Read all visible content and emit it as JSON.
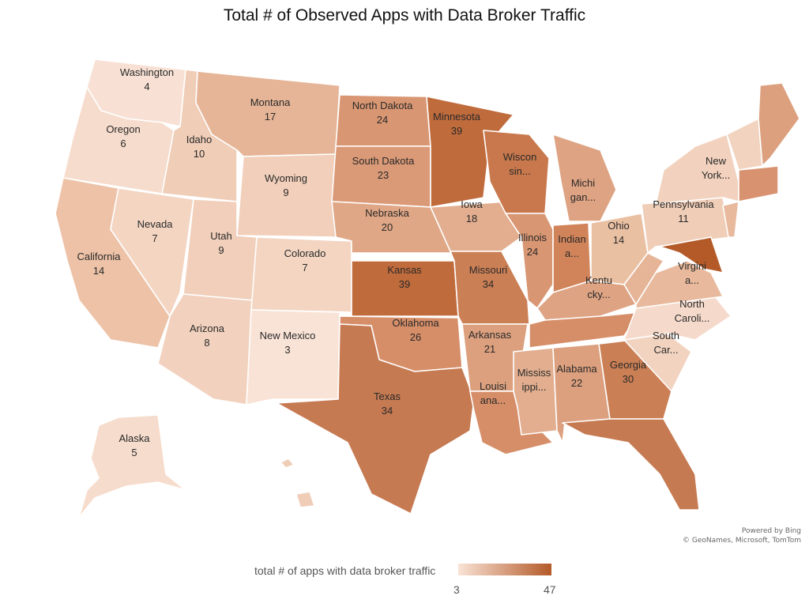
{
  "title": "Total # of Observed Apps with Data Broker Traffic",
  "credits": {
    "line1": "Powered by Bing",
    "line2": "© GeoNames, Microsoft, TomTom"
  },
  "legend": {
    "title": "total # of apps with data broker traffic",
    "min": "3",
    "max": "47",
    "min_color": "#f9e3d6",
    "max_color": "#b45a28"
  },
  "states": [
    {
      "id": "WA",
      "name": "Washington",
      "value": 4
    },
    {
      "id": "OR",
      "name": "Oregon",
      "value": 6
    },
    {
      "id": "CA",
      "name": "California",
      "value": 14
    },
    {
      "id": "ID",
      "name": "Idaho",
      "value": 10
    },
    {
      "id": "NV",
      "name": "Nevada",
      "value": 7
    },
    {
      "id": "MT",
      "name": "Montana",
      "value": 17
    },
    {
      "id": "WY",
      "name": "Wyoming",
      "value": 9
    },
    {
      "id": "UT",
      "name": "Utah",
      "value": 9
    },
    {
      "id": "AZ",
      "name": "Arizona",
      "value": 8
    },
    {
      "id": "CO",
      "name": "Colorado",
      "value": 7
    },
    {
      "id": "NM",
      "name": "New Mexico",
      "value": 3
    },
    {
      "id": "ND",
      "name": "North Dakota",
      "value": 24
    },
    {
      "id": "SD",
      "name": "South Dakota",
      "value": 23
    },
    {
      "id": "NE",
      "name": "Nebraska",
      "value": 20
    },
    {
      "id": "KS",
      "name": "Kansas",
      "value": 39
    },
    {
      "id": "OK",
      "name": "Oklahoma",
      "value": 26
    },
    {
      "id": "TX",
      "name": "Texas",
      "value": 34
    },
    {
      "id": "MN",
      "name": "Minnesota",
      "value": 39
    },
    {
      "id": "IA",
      "name": "Iowa",
      "value": 18
    },
    {
      "id": "MO",
      "name": "Missouri",
      "value": 34
    },
    {
      "id": "AR",
      "name": "Arkansas",
      "value": 21
    },
    {
      "id": "LA",
      "name": "Louisi ana...",
      "value": null
    },
    {
      "id": "WI",
      "name": "Wiscon sin...",
      "value": null
    },
    {
      "id": "IL",
      "name": "Illinois",
      "value": 24
    },
    {
      "id": "MI",
      "name": "Michi gan...",
      "value": null
    },
    {
      "id": "IN",
      "name": "Indian a...",
      "value": null
    },
    {
      "id": "OH",
      "name": "Ohio",
      "value": 14
    },
    {
      "id": "KY",
      "name": "Kentu cky...",
      "value": null
    },
    {
      "id": "TN",
      "name": "",
      "value": null
    },
    {
      "id": "MS",
      "name": "Mississ ippi...",
      "value": null
    },
    {
      "id": "AL",
      "name": "Alabama",
      "value": 22
    },
    {
      "id": "GA",
      "name": "Georgia",
      "value": 30
    },
    {
      "id": "FL",
      "name": "",
      "value": null
    },
    {
      "id": "SC",
      "name": "South Car...",
      "value": null
    },
    {
      "id": "NC",
      "name": "North Caroli...",
      "value": null
    },
    {
      "id": "VA",
      "name": "Virgini a...",
      "value": null
    },
    {
      "id": "WV",
      "name": "",
      "value": null
    },
    {
      "id": "PA",
      "name": "Pennsylvania",
      "value": 11
    },
    {
      "id": "NY",
      "name": "New York...",
      "value": null
    },
    {
      "id": "MD",
      "name": "",
      "value": null
    },
    {
      "id": "NE_SMALL",
      "name": "",
      "value": null
    },
    {
      "id": "ME",
      "name": "",
      "value": null
    },
    {
      "id": "AK",
      "name": "Alaska",
      "value": 5
    },
    {
      "id": "HI",
      "name": "",
      "value": null
    }
  ]
}
